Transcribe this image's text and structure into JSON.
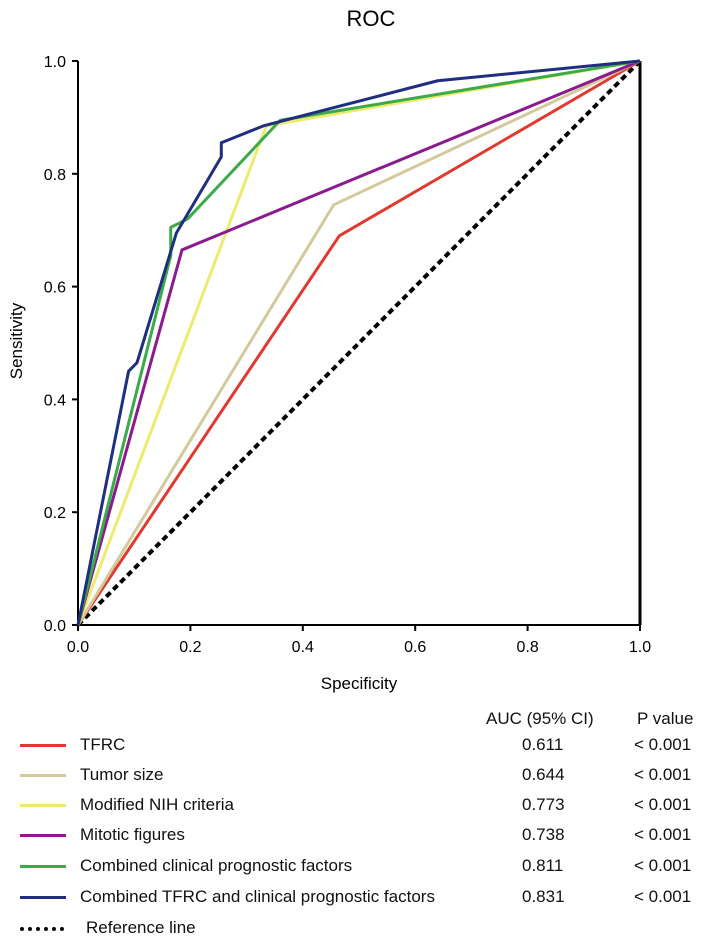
{
  "chart_data": {
    "type": "line",
    "title": "ROC",
    "xlabel": "Specificity",
    "ylabel": "Sensitivity",
    "xlim": [
      0,
      1
    ],
    "ylim": [
      0,
      1
    ],
    "xticks": [
      "0.0",
      "0.2",
      "0.4",
      "0.6",
      "0.8",
      "1.0"
    ],
    "yticks": [
      "0.0",
      "0.2",
      "0.4",
      "0.6",
      "0.8",
      "1.0"
    ],
    "grid": false,
    "series": [
      {
        "name": "TFRC",
        "color": "#e03a2f",
        "auc": "0.611",
        "p": "< 0.001",
        "points": [
          [
            0,
            0
          ],
          [
            0.465,
            0.69
          ],
          [
            1,
            1
          ]
        ]
      },
      {
        "name": "Tumor size",
        "color": "#d4c99a",
        "auc": "0.644",
        "p": "< 0.001",
        "points": [
          [
            0,
            0
          ],
          [
            0.455,
            0.745
          ],
          [
            1,
            1
          ]
        ]
      },
      {
        "name": "Modified NIH criteria",
        "color": "#eeea6e",
        "auc": "0.773",
        "p": "< 0.001",
        "points": [
          [
            0,
            0
          ],
          [
            0.335,
            0.885
          ],
          [
            1,
            1
          ]
        ]
      },
      {
        "name": "Mitotic figures",
        "color": "#8b1a8f",
        "auc": "0.738",
        "p": "< 0.001",
        "points": [
          [
            0,
            0
          ],
          [
            0.185,
            0.665
          ],
          [
            1,
            1
          ]
        ]
      },
      {
        "name": "Combined clinical prognostic factors",
        "color": "#3caa4a",
        "auc": "0.811",
        "p": "< 0.001",
        "points": [
          [
            0,
            0
          ],
          [
            0.165,
            0.655
          ],
          [
            0.165,
            0.705
          ],
          [
            0.195,
            0.72
          ],
          [
            0.36,
            0.895
          ],
          [
            1,
            1
          ]
        ]
      },
      {
        "name": "Combined TFRC and clinical prognostic factors",
        "color": "#1f2e80",
        "auc": "0.831",
        "p": "< 0.001",
        "points": [
          [
            0,
            0
          ],
          [
            0.09,
            0.45
          ],
          [
            0.105,
            0.465
          ],
          [
            0.175,
            0.695
          ],
          [
            0.255,
            0.83
          ],
          [
            0.255,
            0.855
          ],
          [
            0.33,
            0.885
          ],
          [
            0.64,
            0.965
          ],
          [
            1,
            1
          ]
        ]
      }
    ],
    "reference": {
      "name": "Reference line",
      "color": "#000000",
      "points": [
        [
          0,
          0
        ],
        [
          1,
          1
        ]
      ]
    }
  },
  "legend": {
    "auc_header": "AUC (95% CI)",
    "p_header": "P value"
  }
}
